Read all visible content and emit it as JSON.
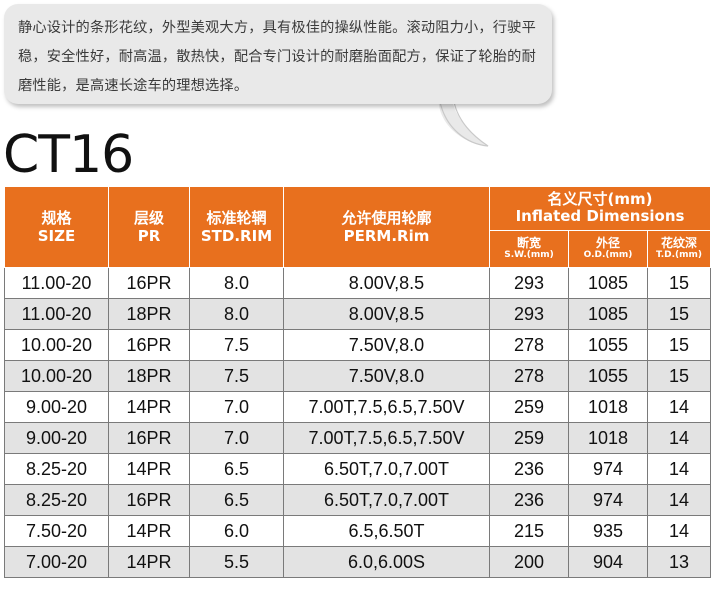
{
  "intro": {
    "text": "静心设计的条形花纹，外型美观大方，具有极佳的操纵性能。滚动阻力小，行驶平稳，安全性好，耐高温，散热快，配合专门设计的耐磨胎面配方，保证了轮胎的耐磨性能，是高速长途车的理想选择。"
  },
  "model": "CT16",
  "colors": {
    "header": "#e8701e",
    "alt_row": "#e3e3e3",
    "bubble": "#e9e9e9"
  },
  "table": {
    "headers": {
      "size": {
        "cn": "规格",
        "en": "SIZE"
      },
      "pr": {
        "cn": "层级",
        "en": "PR"
      },
      "std_rim": {
        "cn": "标准轮辋",
        "en": "STD.RIM"
      },
      "perm_rim": {
        "cn": "允许使用轮廓",
        "en": "PERM.Rim"
      },
      "dimensions": {
        "cn": "名义尺寸(mm)",
        "en": "Inflated Dimensions"
      },
      "sw": {
        "cn": "断宽",
        "en": "S.W.(mm)"
      },
      "od": {
        "cn": "外径",
        "en": "O.D.(mm)"
      },
      "td": {
        "cn": "花纹深",
        "en": "T.D.(mm)"
      }
    },
    "rows": [
      {
        "size": "11.00-20",
        "pr": "16PR",
        "std_rim": "8.0",
        "perm_rim": "8.00V,8.5",
        "sw": "293",
        "od": "1085",
        "td": "15"
      },
      {
        "size": "11.00-20",
        "pr": "18PR",
        "std_rim": "8.0",
        "perm_rim": "8.00V,8.5",
        "sw": "293",
        "od": "1085",
        "td": "15"
      },
      {
        "size": "10.00-20",
        "pr": "16PR",
        "std_rim": "7.5",
        "perm_rim": "7.50V,8.0",
        "sw": "278",
        "od": "1055",
        "td": "15"
      },
      {
        "size": "10.00-20",
        "pr": "18PR",
        "std_rim": "7.5",
        "perm_rim": "7.50V,8.0",
        "sw": "278",
        "od": "1055",
        "td": "15"
      },
      {
        "size": "9.00-20",
        "pr": "14PR",
        "std_rim": "7.0",
        "perm_rim": "7.00T,7.5,6.5,7.50V",
        "sw": "259",
        "od": "1018",
        "td": "14"
      },
      {
        "size": "9.00-20",
        "pr": "16PR",
        "std_rim": "7.0",
        "perm_rim": "7.00T,7.5,6.5,7.50V",
        "sw": "259",
        "od": "1018",
        "td": "14"
      },
      {
        "size": "8.25-20",
        "pr": "14PR",
        "std_rim": "6.5",
        "perm_rim": "6.50T,7.0,7.00T",
        "sw": "236",
        "od": "974",
        "td": "14"
      },
      {
        "size": "8.25-20",
        "pr": "16PR",
        "std_rim": "6.5",
        "perm_rim": "6.50T,7.0,7.00T",
        "sw": "236",
        "od": "974",
        "td": "14"
      },
      {
        "size": "7.50-20",
        "pr": "14PR",
        "std_rim": "6.0",
        "perm_rim": "6.5,6.50T",
        "sw": "215",
        "od": "935",
        "td": "14"
      },
      {
        "size": "7.00-20",
        "pr": "14PR",
        "std_rim": "5.5",
        "perm_rim": "6.0,6.00S",
        "sw": "200",
        "od": "904",
        "td": "13"
      }
    ]
  }
}
